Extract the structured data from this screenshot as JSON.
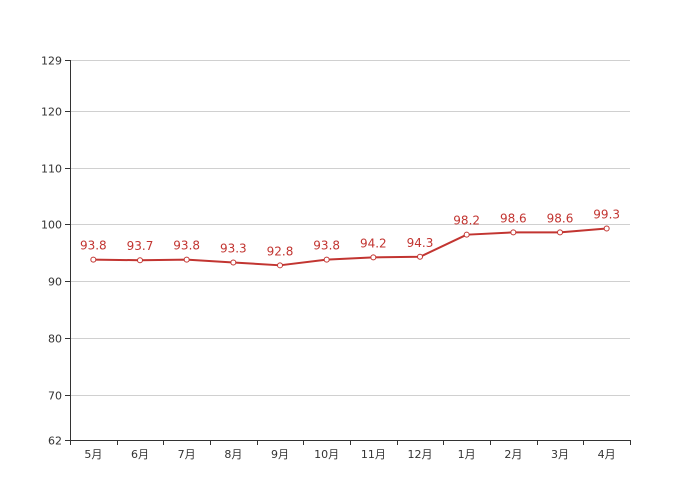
{
  "chart_data": {
    "type": "line",
    "title": "",
    "xlabel": "",
    "ylabel": "",
    "categories": [
      "5月",
      "6月",
      "7月",
      "8月",
      "9月",
      "10月",
      "11月",
      "12月",
      "1月",
      "2月",
      "3月",
      "4月"
    ],
    "series": [
      {
        "values": [
          93.8,
          93.7,
          93.8,
          93.3,
          92.8,
          93.8,
          94.2,
          94.3,
          98.2,
          98.6,
          98.6,
          99.3
        ],
        "labels": [
          "93.8",
          "93.7",
          "93.8",
          "93.3",
          "92.8",
          "93.8",
          "94.2",
          "94.3",
          "98.2",
          "98.6",
          "98.6",
          "99.3"
        ],
        "color": "#c23531"
      }
    ],
    "ylim": [
      62,
      129
    ],
    "yticks": [
      62,
      70,
      80,
      90,
      100,
      110,
      120,
      129
    ],
    "ytick_labels": [
      "62",
      "70",
      "80",
      "90",
      "100",
      "110",
      "120",
      "129"
    ],
    "grid": true,
    "legend": "none"
  }
}
